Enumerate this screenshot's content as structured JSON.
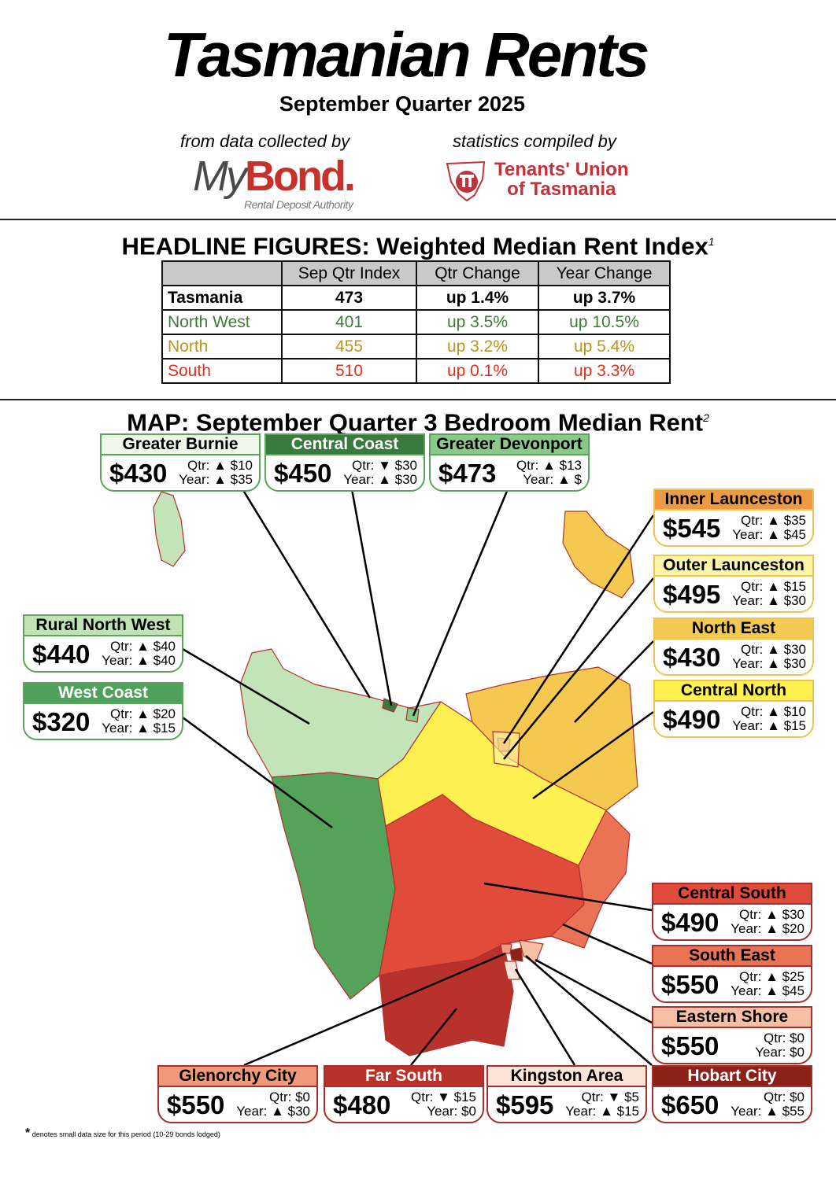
{
  "header": {
    "title": "Tasmanian Rents",
    "subtitle": "September Quarter 2025",
    "credit_left": "from data collected by",
    "credit_right": "statistics compiled by",
    "logo_mybond_my": "My",
    "logo_mybond_bond": "Bond.",
    "logo_mybond_sub": "Rental Deposit Authority",
    "logo_tu_line1": "Tenants' Union",
    "logo_tu_line2": "of Tasmania"
  },
  "headline": {
    "title": "HEADLINE FIGURES: Weighted Median Rent Index",
    "footnote": "1",
    "columns": [
      "",
      "Sep Qtr Index",
      "Qtr Change",
      "Year Change"
    ],
    "rows": [
      {
        "region": "Tasmania",
        "index": "473",
        "qtr": "up 1.4%",
        "year": "up 3.7%",
        "color": "#000000"
      },
      {
        "region": "North West",
        "index": "401",
        "qtr": "up 3.5%",
        "year": "up 10.5%",
        "color": "#3e7b36"
      },
      {
        "region": "North",
        "index": "455",
        "qtr": "up 3.2%",
        "year": "up 5.4%",
        "color": "#b8961e"
      },
      {
        "region": "South",
        "index": "510",
        "qtr": "up 0.1%",
        "year": "up 3.3%",
        "color": "#e0301e"
      }
    ]
  },
  "map": {
    "title": "MAP: September Quarter 3 Bedroom Median Rent",
    "footnote": "2",
    "areas": [
      {
        "name": "Greater Burnie",
        "price": "$430",
        "qtr": "Qtr: ▲ $10",
        "year": "Year: ▲ $35",
        "header_color": "#eef7ea",
        "border_color": "#5aa55a",
        "text_color": "#000"
      },
      {
        "name": "Central Coast",
        "price": "$450",
        "qtr": "Qtr: ▼ $30",
        "year": "Year: ▲ $30",
        "header_color": "#3a7a3e",
        "border_color": "#5aa55a",
        "text_color": "#fff"
      },
      {
        "name": "Greater Devonport",
        "price": "$473",
        "qtr": "Qtr: ▲ $13",
        "year": "Year: ▲ $",
        "header_color": "#8cc88a",
        "border_color": "#5aa55a",
        "text_color": "#000"
      },
      {
        "name": "Inner Launceston",
        "price": "$545",
        "qtr": "Qtr: ▲ $35",
        "year": "Year: ▲ $45",
        "header_color": "#ee9a45",
        "border_color": "#f0c24f",
        "text_color": "#000"
      },
      {
        "name": "Outer Launceston",
        "price": "$495",
        "qtr": "Qtr: ▲ $15",
        "year": "Year: ▲ $30",
        "header_color": "#fdf6a8",
        "border_color": "#f0c24f",
        "text_color": "#000"
      },
      {
        "name": "North East",
        "price": "$430",
        "qtr": "Qtr: ▲ $30",
        "year": "Year: ▲ $30",
        "header_color": "#f4c94f",
        "border_color": "#f0c24f",
        "text_color": "#000"
      },
      {
        "name": "Central North",
        "price": "$490",
        "qtr": "Qtr: ▲ $10",
        "year": "Year: ▲ $15",
        "header_color": "#fdf04f",
        "border_color": "#f0c24f",
        "text_color": "#000"
      },
      {
        "name": "Rural North West",
        "price": "$440",
        "qtr": "Qtr: ▲ $40",
        "year": "Year: ▲ $40",
        "header_color": "#bfe3b5",
        "border_color": "#5aa55a",
        "text_color": "#000"
      },
      {
        "name": "West Coast",
        "price": "$320",
        "qtr": "Qtr: ▲ $20",
        "year": "Year: ▲ $15",
        "header_color": "#4ea05a",
        "border_color": "#5aa55a",
        "text_color": "#fff"
      },
      {
        "name": "Central South",
        "price": "$490",
        "qtr": "Qtr: ▲ $30",
        "year": "Year: ▲ $20",
        "header_color": "#e04b3a",
        "border_color": "#a3302a",
        "text_color": "#000"
      },
      {
        "name": "South East",
        "price": "$550",
        "qtr": "Qtr: ▲ $25",
        "year": "Year: ▲ $45",
        "header_color": "#ea7355",
        "border_color": "#a3302a",
        "text_color": "#000"
      },
      {
        "name": "Eastern Shore",
        "price": "$550",
        "qtr": "Qtr: $0",
        "year": "Year: $0",
        "header_color": "#f4bfa5",
        "border_color": "#a3302a",
        "text_color": "#000"
      },
      {
        "name": "Glenorchy City",
        "price": "$550",
        "qtr": "Qtr: $0",
        "year": "Year: ▲ $30",
        "header_color": "#ef9a7a",
        "border_color": "#a3302a",
        "text_color": "#000"
      },
      {
        "name": "Far South",
        "price": "$480",
        "qtr": "Qtr: ▼ $15",
        "year": "Year: $0",
        "header_color": "#b8322b",
        "border_color": "#a3302a",
        "text_color": "#fff"
      },
      {
        "name": "Kingston Area",
        "price": "$595",
        "qtr": "Qtr: ▼ $5",
        "year": "Year: ▲ $15",
        "header_color": "#fbe3d8",
        "border_color": "#a3302a",
        "text_color": "#000"
      },
      {
        "name": "Hobart City",
        "price": "$650",
        "qtr": "Qtr: $0",
        "year": "Year: ▲ $55",
        "header_color": "#8a2219",
        "border_color": "#a3302a",
        "text_color": "#fff"
      }
    ]
  },
  "footnote": {
    "star": "*",
    "text": "denotes small data size for this period (10-29 bonds lodged)"
  }
}
